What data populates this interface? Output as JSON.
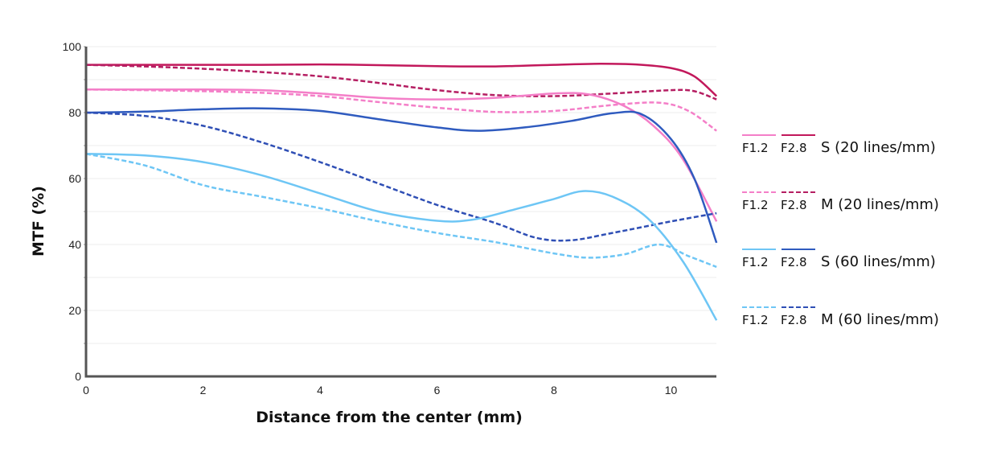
{
  "chart_data": {
    "type": "line",
    "title": "",
    "xlabel": "Distance from the center (mm)",
    "ylabel": "MTF (%)",
    "xlim": [
      0,
      10.78
    ],
    "ylim": [
      0,
      100
    ],
    "x_ticks": [
      "0",
      "2",
      "4",
      "6",
      "8",
      "10"
    ],
    "x_tick_values": [
      0,
      2,
      4,
      6,
      8,
      10
    ],
    "y_ticks": [
      "0",
      "20",
      "40",
      "60",
      "80",
      "100"
    ],
    "y_tick_values": [
      0,
      20,
      40,
      60,
      80,
      100
    ],
    "grid": true,
    "grid_step": 10,
    "legend_position": "right",
    "series": [
      {
        "name": "S (20 lines/mm) F2.8",
        "aperture": "F2.8",
        "group": "S (20 lines/mm)",
        "color": "#c2185b",
        "style": "solid",
        "x": [
          0,
          1,
          2,
          3,
          4,
          5,
          6,
          7,
          8,
          8.8,
          9.4,
          10,
          10.4,
          10.78
        ],
        "y": [
          94.5,
          94.5,
          94.5,
          94.5,
          94.6,
          94.4,
          94.1,
          94,
          94.5,
          94.8,
          94.6,
          93.5,
          91,
          85
        ]
      },
      {
        "name": "M (20 lines/mm) F2.8",
        "aperture": "F2.8",
        "group": "M (20 lines/mm)",
        "color": "#b51e62",
        "style": "dashed",
        "x": [
          0,
          1,
          2,
          3,
          4,
          5,
          6,
          7,
          8,
          9,
          10,
          10.4,
          10.78
        ],
        "y": [
          94.5,
          94,
          93.3,
          92.3,
          91,
          89,
          86.8,
          85.3,
          85,
          85.8,
          86.8,
          86.5,
          84
        ]
      },
      {
        "name": "S (20 lines/mm) F1.2",
        "aperture": "F1.2",
        "group": "S (20 lines/mm)",
        "color": "#f47fc8",
        "style": "solid",
        "x": [
          0,
          1,
          2,
          3,
          4,
          5,
          6,
          7,
          8,
          8.6,
          9.2,
          9.7,
          10.2,
          10.78
        ],
        "y": [
          87,
          87,
          87,
          86.8,
          85.8,
          84.5,
          84,
          84.5,
          85.8,
          85.5,
          82,
          76,
          66,
          47
        ]
      },
      {
        "name": "M (20 lines/mm) F1.2",
        "aperture": "F1.2",
        "group": "M (20 lines/mm)",
        "color": "#f47fc8",
        "style": "dashed",
        "x": [
          0,
          1,
          2,
          3,
          4,
          5,
          6,
          7,
          8,
          9,
          9.8,
          10.3,
          10.78
        ],
        "y": [
          87,
          86.8,
          86.5,
          86,
          85,
          83.2,
          81.5,
          80.2,
          80.5,
          82.3,
          83,
          80.5,
          74.5
        ]
      },
      {
        "name": "S (60 lines/mm) F2.8",
        "aperture": "F2.8",
        "group": "S (60 lines/mm)",
        "color": "#2f5bbf",
        "style": "solid",
        "x": [
          0,
          1,
          2,
          3,
          4,
          5,
          6,
          6.7,
          7.5,
          8.3,
          9,
          9.5,
          10,
          10.4,
          10.78
        ],
        "y": [
          80,
          80.3,
          81,
          81.3,
          80.5,
          78,
          75.5,
          74.5,
          75.5,
          77.5,
          79.8,
          79.5,
          72,
          60,
          40.5
        ]
      },
      {
        "name": "M (60 lines/mm) F2.8",
        "aperture": "F2.8",
        "group": "M (60 lines/mm)",
        "color": "#2f4fb5",
        "style": "dashed",
        "x": [
          0,
          1,
          2,
          3,
          4,
          5,
          6,
          7,
          7.7,
          8.3,
          9,
          10,
          10.78
        ],
        "y": [
          80,
          79,
          76,
          71,
          65,
          58.5,
          52,
          46.5,
          42,
          41.3,
          43.5,
          47,
          49.5
        ]
      },
      {
        "name": "S (60 lines/mm) F1.2",
        "aperture": "F1.2",
        "group": "S (60 lines/mm)",
        "color": "#6ec6f5",
        "style": "solid",
        "x": [
          0,
          1,
          2,
          3,
          4,
          5,
          6,
          6.6,
          7.3,
          8,
          8.5,
          9,
          9.6,
          10.2,
          10.78
        ],
        "y": [
          67.5,
          67,
          65,
          61,
          55.5,
          50,
          47.2,
          47.5,
          50.5,
          53.8,
          56.2,
          54.5,
          48,
          35,
          17
        ]
      },
      {
        "name": "M (60 lines/mm) F1.2",
        "aperture": "F1.2",
        "group": "M (60 lines/mm)",
        "color": "#6ec6f5",
        "style": "dashed",
        "x": [
          0,
          1,
          2,
          3,
          4,
          5,
          6,
          7,
          8,
          8.6,
          9.2,
          9.8,
          10.3,
          10.78
        ],
        "y": [
          67.5,
          64,
          58,
          54.5,
          51,
          47,
          43.5,
          40.7,
          37.3,
          36,
          37,
          40,
          36.5,
          33.2
        ]
      }
    ],
    "legend": [
      {
        "label": "S (20 lines/mm)",
        "f_a": "F1.2",
        "f_b": "F2.8",
        "color_a": "#f47fc8",
        "color_b": "#c2185b",
        "style": "solid"
      },
      {
        "label": "M (20 lines/mm)",
        "f_a": "F1.2",
        "f_b": "F2.8",
        "color_a": "#f47fc8",
        "color_b": "#b51e62",
        "style": "dashed"
      },
      {
        "label": "S (60 lines/mm)",
        "f_a": "F1.2",
        "f_b": "F2.8",
        "color_a": "#6ec6f5",
        "color_b": "#2f5bbf",
        "style": "solid"
      },
      {
        "label": "M (60 lines/mm)",
        "f_a": "F1.2",
        "f_b": "F2.8",
        "color_a": "#6ec6f5",
        "color_b": "#2f4fb5",
        "style": "dashed"
      }
    ],
    "axis_color": "#555555",
    "grid_color": "#ececec"
  }
}
